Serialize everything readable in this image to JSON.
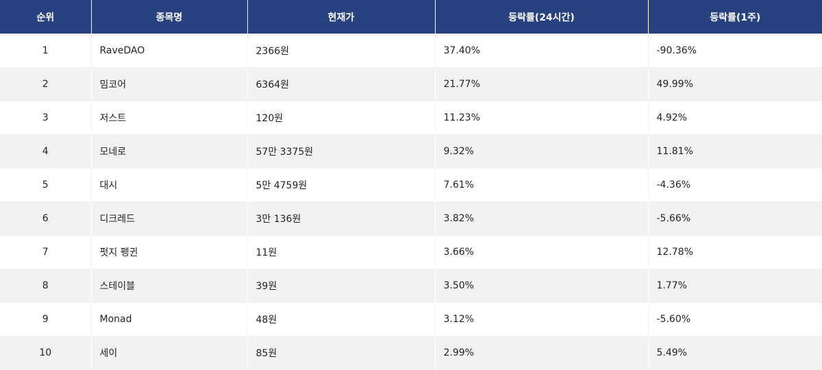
{
  "table": {
    "headers": [
      "순위",
      "종목명",
      "현재가",
      "등락률(24시간)",
      "등락률(1주)"
    ],
    "rows": [
      {
        "rank": "1",
        "name": "RaveDAO",
        "price": "2366원",
        "change_24h": "37.40%",
        "change_1w": "-90.36%"
      },
      {
        "rank": "2",
        "name": "밈코어",
        "price": "6364원",
        "change_24h": "21.77%",
        "change_1w": "49.99%"
      },
      {
        "rank": "3",
        "name": "저스트",
        "price": "120원",
        "change_24h": "11.23%",
        "change_1w": "4.92%"
      },
      {
        "rank": "4",
        "name": "모네로",
        "price": "57만 3375원",
        "change_24h": "9.32%",
        "change_1w": "11.81%"
      },
      {
        "rank": "5",
        "name": "대시",
        "price": "5만 4759원",
        "change_24h": "7.61%",
        "change_1w": "-4.36%"
      },
      {
        "rank": "6",
        "name": "디크레드",
        "price": "3만 136원",
        "change_24h": "3.82%",
        "change_1w": "-5.66%"
      },
      {
        "rank": "7",
        "name": "펏지 펭귄",
        "price": "11원",
        "change_24h": "3.66%",
        "change_1w": "12.78%"
      },
      {
        "rank": "8",
        "name": "스테이블",
        "price": "39원",
        "change_24h": "3.50%",
        "change_1w": "1.77%"
      },
      {
        "rank": "9",
        "name": "Monad",
        "price": "48원",
        "change_24h": "3.12%",
        "change_1w": "-5.60%"
      },
      {
        "rank": "10",
        "name": "세이",
        "price": "85원",
        "change_24h": "2.99%",
        "change_1w": "5.49%"
      }
    ]
  },
  "colors": {
    "header_bg": "#27427f",
    "header_text": "#ffffff",
    "row_alt_bg": "#f2f2f2",
    "row_bg": "#ffffff",
    "text": "#222222"
  }
}
